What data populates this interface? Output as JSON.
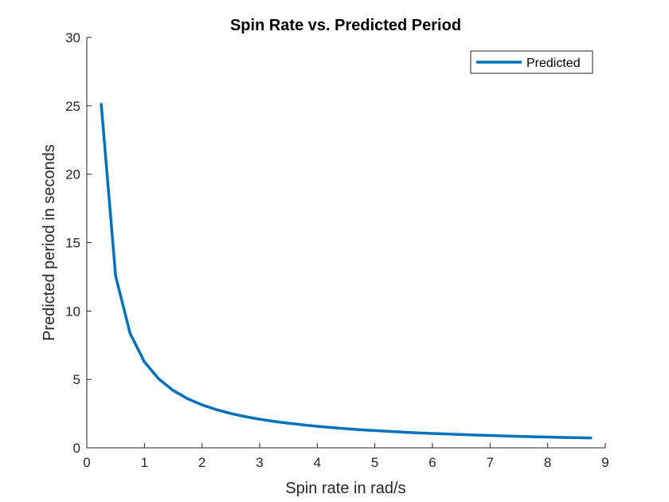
{
  "chart_data": {
    "type": "line",
    "title": "Spin Rate vs. Predicted Period",
    "xlabel": "Spin rate in rad/s",
    "ylabel": "Predicted period in seconds",
    "xlim": [
      0,
      9
    ],
    "ylim": [
      0,
      30
    ],
    "xticks": [
      "0",
      "1",
      "2",
      "3",
      "4",
      "5",
      "6",
      "7",
      "8",
      "9"
    ],
    "yticks": [
      "0",
      "5",
      "10",
      "15",
      "20",
      "25",
      "30"
    ],
    "grid": false,
    "legend_position": "top-right",
    "series": [
      {
        "name": "Predicted",
        "color": "#0072BD",
        "x": [
          0.25,
          0.5,
          0.75,
          1.0,
          1.25,
          1.5,
          1.75,
          2.0,
          2.25,
          2.5,
          2.75,
          3.0,
          3.25,
          3.5,
          3.75,
          4.0,
          4.25,
          4.5,
          4.75,
          5.0,
          5.25,
          5.5,
          5.75,
          6.0,
          6.25,
          6.5,
          6.75,
          7.0,
          7.25,
          7.5,
          7.75,
          8.0,
          8.25,
          8.5,
          8.75
        ],
        "y": [
          25.13,
          12.57,
          8.38,
          6.28,
          5.03,
          4.19,
          3.59,
          3.14,
          2.79,
          2.51,
          2.28,
          2.09,
          1.93,
          1.8,
          1.68,
          1.57,
          1.48,
          1.4,
          1.32,
          1.26,
          1.2,
          1.14,
          1.09,
          1.05,
          1.01,
          0.97,
          0.93,
          0.9,
          0.87,
          0.84,
          0.81,
          0.79,
          0.76,
          0.74,
          0.72
        ]
      }
    ]
  }
}
